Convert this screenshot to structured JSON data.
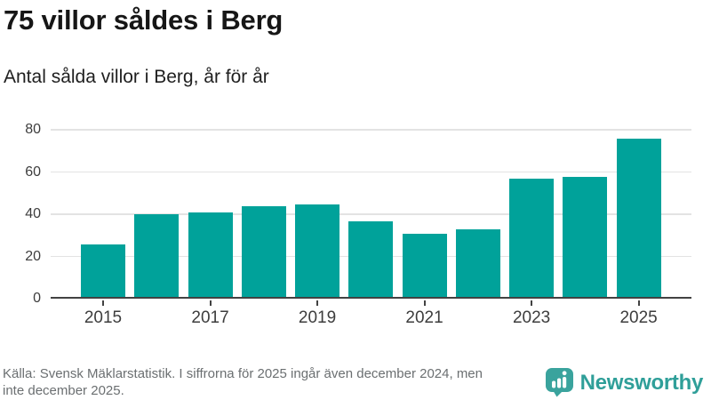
{
  "header": {
    "title": "75 villor såldes i Berg",
    "subtitle": "Antal sålda villor i Berg, år för år"
  },
  "chart_data": {
    "type": "bar",
    "categories": [
      "2015",
      "2016",
      "2017",
      "2018",
      "2019",
      "2020",
      "2021",
      "2022",
      "2023",
      "2024",
      "2025"
    ],
    "values": [
      25,
      39,
      40,
      43,
      44,
      36,
      30,
      32,
      56,
      57,
      75
    ],
    "title": "75 villor såldes i Berg",
    "subtitle": "Antal sålda villor i Berg, år för år",
    "xlabel": "",
    "ylabel": "",
    "ylim": [
      0,
      80
    ],
    "y_ticks": [
      0,
      20,
      40,
      60,
      80
    ],
    "x_tick_labels": [
      "2015",
      "2017",
      "2019",
      "2021",
      "2023",
      "2025"
    ],
    "grid": "horizontal",
    "legend": "none",
    "bar_color": "#00a29a"
  },
  "footer": {
    "source_lines": [
      "Källa: Svensk Mäklarstatistik. I siffrorna för 2025 ingår även december 2024, men",
      "inte december 2025."
    ],
    "logo_text": "Newsworthy",
    "logo_color": "#2f9f99",
    "logo_icon_color": "#3aa39d"
  },
  "colors": {
    "bar": "#00a29a",
    "axis_line": "#424242",
    "gridline": "#e3e3e3",
    "tick_label": "#3d3d3d",
    "source_text": "#6b6f71"
  }
}
